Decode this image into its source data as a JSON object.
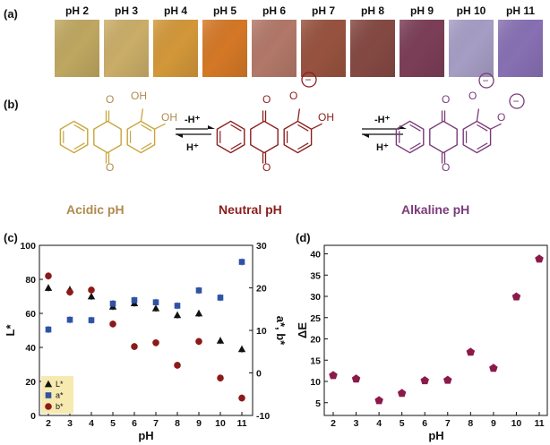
{
  "panel_labels": {
    "a": "(a)",
    "b": "(b)",
    "c": "(c)",
    "d": "(d)"
  },
  "swatches": [
    {
      "label": "pH 2",
      "color": "#c2aa62"
    },
    {
      "label": "pH 3",
      "color": "#cdb06a"
    },
    {
      "label": "pH 4",
      "color": "#d69a3a"
    },
    {
      "label": "pH 5",
      "color": "#d87a27"
    },
    {
      "label": "pH 6",
      "color": "#b57a6a"
    },
    {
      "label": "pH 7",
      "color": "#9a5440"
    },
    {
      "label": "pH 8",
      "color": "#874a44"
    },
    {
      "label": "pH 9",
      "color": "#7d3f58"
    },
    {
      "label": "pH 10",
      "color": "#a9a0c8"
    },
    {
      "label": "pH 11",
      "color": "#8a72b6"
    }
  ],
  "scheme": {
    "acidic_label": "Acidic pH",
    "neutral_label": "Neutral pH",
    "alkaline_label": "Alkaline pH",
    "acidic_color": "#c8a53a",
    "acidic_text_color": "#b08a4f",
    "neutral_color": "#8b1e1e",
    "alkaline_color": "#7a3a7a",
    "atom_O": "O",
    "atom_OH": "OH",
    "minus": "−",
    "arrow1_top": "-H⁺",
    "arrow1_bottom": "H⁺",
    "arrow2_top": "-H⁺",
    "arrow2_bottom": "H⁺"
  },
  "chart_data": [
    {
      "type": "scatter",
      "panel": "c",
      "xlabel": "pH",
      "ylabel": "L*",
      "y2label": "a*, b*",
      "x_ticks": [
        2,
        3,
        4,
        5,
        6,
        7,
        8,
        9,
        10,
        11
      ],
      "ylim": [
        0,
        100
      ],
      "y_ticks": [
        0,
        20,
        40,
        60,
        80,
        100
      ],
      "y2lim": [
        -10,
        30
      ],
      "y2_ticks": [
        -10,
        0,
        10,
        20,
        30
      ],
      "legend_position": "bottom-left",
      "legend_bg": "#f7eab0",
      "series": [
        {
          "name": "L*",
          "axis": "left",
          "marker": "triangle",
          "color": "#111111",
          "x": [
            2,
            3,
            4,
            5,
            6,
            7,
            8,
            9,
            10,
            11
          ],
          "y": [
            75,
            74,
            70,
            64,
            66,
            63,
            59,
            60,
            44,
            39
          ]
        },
        {
          "name": "a*",
          "axis": "right",
          "marker": "square",
          "color": "#2f52a6",
          "x": [
            2,
            3,
            4,
            5,
            6,
            7,
            8,
            9,
            10,
            11
          ],
          "y": [
            10.2,
            12.5,
            12.4,
            16.3,
            17.1,
            16.6,
            15.8,
            19.4,
            17.7,
            26.1
          ]
        },
        {
          "name": "b*",
          "axis": "right",
          "marker": "circle",
          "color": "#8b1a1a",
          "x": [
            2,
            3,
            4,
            5,
            6,
            7,
            8,
            9,
            10,
            11
          ],
          "y": [
            22.8,
            19.0,
            19.5,
            11.5,
            6.2,
            7.1,
            1.8,
            7.4,
            -1.2,
            -5.9
          ]
        }
      ]
    },
    {
      "type": "scatter",
      "panel": "d",
      "xlabel": "pH",
      "ylabel": "ΔE",
      "x_ticks": [
        2,
        3,
        4,
        5,
        6,
        7,
        8,
        9,
        10,
        11
      ],
      "ylim": [
        2,
        42
      ],
      "y_ticks": [
        5,
        10,
        15,
        20,
        25,
        30,
        35,
        40
      ],
      "series": [
        {
          "name": "ΔE",
          "marker": "pentagon",
          "color": "#8b1a4a",
          "x": [
            2,
            3,
            4,
            5,
            6,
            7,
            8,
            9,
            10,
            11
          ],
          "y": [
            11.4,
            10.6,
            5.5,
            7.2,
            10.2,
            10.3,
            16.9,
            13.1,
            29.9,
            38.8
          ]
        }
      ]
    }
  ]
}
